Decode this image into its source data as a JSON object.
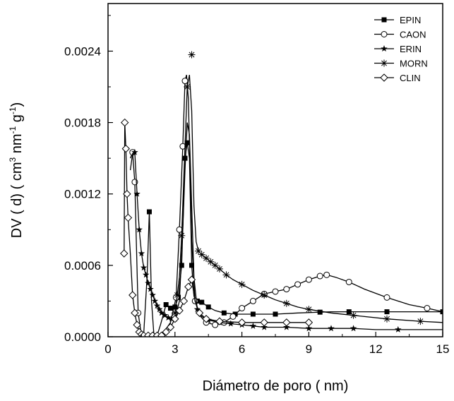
{
  "chart_data": {
    "type": "line",
    "xlabel": "Diámetro de poro  ( nm)",
    "ylabel": {
      "parts": [
        {
          "text": "DV ( d)  ( cm",
          "sup": false
        },
        {
          "text": "3",
          "sup": true
        },
        {
          "text": " nm",
          "sup": false
        },
        {
          "text": "-1",
          "sup": true
        },
        {
          "text": " g",
          "sup": false
        },
        {
          "text": "-1",
          "sup": true
        },
        {
          "text": ")",
          "sup": false
        }
      ]
    },
    "xlim": [
      0,
      15
    ],
    "ylim": [
      0,
      0.0028
    ],
    "x_ticks": [
      0,
      3,
      6,
      9,
      12,
      15
    ],
    "x_tick_labels": [
      "0",
      "3",
      "6",
      "9",
      "12",
      "15"
    ],
    "y_ticks": [
      0,
      0.0006,
      0.0012,
      0.0018,
      0.0024
    ],
    "y_tick_labels": [
      "0.0000",
      "0.0006",
      "0.0012",
      "0.0018",
      "0.0024"
    ],
    "grid": false,
    "legend_position": "top-right",
    "series": [
      {
        "name": "EPIN",
        "marker": "filled-square",
        "color": "#000000",
        "x": [
          1.45,
          1.6,
          1.75,
          1.85,
          1.95,
          2.05,
          2.2,
          2.35,
          2.6,
          2.8,
          2.9,
          3.0,
          3.15,
          3.3,
          3.45,
          3.55,
          3.65,
          3.75,
          3.85,
          4.0,
          4.2,
          4.5,
          4.8,
          5.2,
          5.7,
          6.5,
          7.5,
          8.5,
          10.0,
          12.0,
          15.0
        ],
        "y": [
          1e-05,
          3e-05,
          0.0005,
          0.00105,
          0.0003,
          3e-05,
          1e-05,
          0.0001,
          0.00027,
          0.00024,
          0.00025,
          0.00025,
          0.00033,
          0.0006,
          0.0015,
          0.00163,
          0.0015,
          0.0006,
          0.00034,
          0.0003,
          0.00029,
          0.00025,
          0.00022,
          0.0002,
          0.00019,
          0.00019,
          0.00019,
          0.0002,
          0.00021,
          0.00021,
          0.00021
        ],
        "marked_x": [
          1.85,
          2.6,
          2.8,
          3.0,
          3.15,
          3.3,
          3.45,
          3.55,
          3.75,
          4.0,
          4.2,
          4.5,
          5.2,
          5.7,
          6.5,
          7.5,
          9.5,
          10.8,
          12.5,
          15.0
        ]
      },
      {
        "name": "CAON",
        "marker": "open-circle",
        "color": "#000000",
        "x": [
          1.0,
          1.1,
          1.2,
          1.35,
          1.5,
          1.7,
          2.0,
          2.4,
          2.8,
          3.05,
          3.2,
          3.35,
          3.45,
          3.52,
          3.6,
          3.75,
          3.9,
          4.1,
          4.4,
          4.8,
          5.2,
          5.6,
          6.0,
          6.5,
          7.0,
          7.5,
          8.0,
          8.5,
          9.0,
          9.5,
          9.8,
          10.2,
          10.8,
          11.5,
          12.5,
          13.5,
          14.3,
          15.0
        ],
        "y": [
          0.0015,
          0.00155,
          0.0013,
          0.0002,
          1e-05,
          1e-05,
          1e-05,
          1e-05,
          0.00012,
          0.00033,
          0.0009,
          0.0016,
          0.00215,
          0.0022,
          0.002,
          0.0008,
          0.0003,
          0.00018,
          0.00012,
          0.0001,
          0.00012,
          0.00017,
          0.00024,
          0.0003,
          0.00036,
          0.00038,
          0.0004,
          0.00044,
          0.00048,
          0.00051,
          0.00052,
          0.0005,
          0.00046,
          0.0004,
          0.00033,
          0.00027,
          0.00024,
          0.00021
        ],
        "marked_x": [
          1.1,
          1.2,
          1.35,
          3.05,
          3.2,
          3.35,
          3.45,
          3.9,
          4.4,
          4.8,
          5.2,
          5.6,
          6.0,
          6.5,
          7.0,
          7.5,
          8.0,
          8.5,
          9.0,
          9.5,
          9.8,
          10.8,
          12.5,
          14.3
        ]
      },
      {
        "name": "ERIN",
        "marker": "star",
        "color": "#000000",
        "x": [
          1.0,
          1.1,
          1.2,
          1.3,
          1.4,
          1.5,
          1.6,
          1.7,
          1.8,
          1.9,
          2.0,
          2.1,
          2.2,
          2.3,
          2.4,
          2.55,
          2.7,
          2.85,
          3.0,
          3.2,
          3.35,
          3.45,
          3.55,
          3.65,
          3.75,
          3.85,
          4.0,
          4.2,
          4.5,
          5.0,
          5.5,
          6.0,
          6.5,
          7.0,
          8.0,
          9.0,
          10.0,
          11.0,
          12.0,
          13.0,
          15.0
        ],
        "y": [
          0.0014,
          0.00154,
          0.00155,
          0.0012,
          0.0009,
          0.0007,
          0.00058,
          0.00052,
          0.00045,
          0.0004,
          0.00035,
          0.0003,
          0.00026,
          0.00023,
          0.0002,
          0.00018,
          0.00016,
          0.00015,
          0.00015,
          0.0003,
          0.0009,
          0.0014,
          0.0018,
          0.0017,
          0.0011,
          0.0005,
          0.00023,
          0.00017,
          0.00014,
          0.00012,
          0.00011,
          0.0001,
          9e-05,
          8e-05,
          8e-05,
          7e-05,
          7e-05,
          7e-05,
          6e-05,
          6e-05,
          6e-05
        ],
        "marked_x": [
          1.2,
          1.3,
          1.4,
          1.5,
          1.6,
          1.7,
          1.8,
          1.9,
          2.0,
          2.1,
          2.2,
          2.3,
          2.4,
          2.55,
          2.7,
          2.85,
          3.0,
          4.0,
          4.5,
          5.0,
          5.5,
          6.0,
          6.5,
          7.0,
          8.0,
          9.0,
          10.0,
          11.0,
          13.0
        ]
      },
      {
        "name": "MORN",
        "marker": "asterisk",
        "color": "#000000",
        "x": [
          3.0,
          3.1,
          3.2,
          3.3,
          3.45,
          3.55,
          3.65,
          3.75,
          3.85,
          3.95,
          4.05,
          4.2,
          4.4,
          4.6,
          4.8,
          5.0,
          5.3,
          5.6,
          6.0,
          6.5,
          7.0,
          7.5,
          8.0,
          8.5,
          9.0,
          10.0,
          11.0,
          12.5,
          14.0,
          15.0
        ],
        "y": [
          0.0002,
          0.00035,
          0.0005,
          0.00085,
          0.0016,
          0.0021,
          0.0022,
          0.0019,
          0.0011,
          0.0008,
          0.00072,
          0.00069,
          0.00066,
          0.00063,
          0.0006,
          0.00057,
          0.00052,
          0.00048,
          0.00044,
          0.00039,
          0.00035,
          0.00031,
          0.00028,
          0.00025,
          0.00023,
          0.0002,
          0.00018,
          0.00015,
          0.00013,
          0.00012
        ],
        "marked_x": [
          3.0,
          3.1,
          3.3,
          3.55,
          4.05,
          4.2,
          4.4,
          4.6,
          4.8,
          5.0,
          5.3,
          6.0,
          7.0,
          8.0,
          9.0,
          11.0,
          12.5,
          14.0
        ],
        "outliers": [
          {
            "x": 3.75,
            "y": 0.00237
          }
        ]
      },
      {
        "name": "CLIN",
        "marker": "open-diamond",
        "color": "#000000",
        "x": [
          0.72,
          0.75,
          0.8,
          0.85,
          0.9,
          1.0,
          1.1,
          1.2,
          1.3,
          1.4,
          1.5,
          1.6,
          1.8,
          2.0,
          2.2,
          2.4,
          2.6,
          2.8,
          3.0,
          3.2,
          3.4,
          3.6,
          3.75,
          3.9,
          4.1,
          4.4,
          5.0,
          6.0,
          7.0,
          8.0,
          9.0
        ],
        "y": [
          0.0007,
          0.0018,
          0.00158,
          0.0012,
          0.001,
          0.0007,
          0.00035,
          0.0002,
          0.0001,
          4e-05,
          2e-05,
          1e-05,
          1e-05,
          1e-05,
          1e-05,
          1e-05,
          4e-05,
          8e-05,
          0.00015,
          0.00022,
          0.0003,
          0.00042,
          0.00048,
          0.0003,
          0.0002,
          0.00015,
          0.00013,
          0.00012,
          0.00012,
          0.00012,
          0.00012
        ],
        "marked_x": [
          0.72,
          0.75,
          0.8,
          0.85,
          0.9,
          1.1,
          1.2,
          1.3,
          1.4,
          1.5,
          1.6,
          1.8,
          2.0,
          2.2,
          2.4,
          2.6,
          2.8,
          3.0,
          3.2,
          3.4,
          3.6,
          3.75,
          4.1,
          4.4,
          5.0,
          6.0,
          7.0,
          8.0,
          9.0
        ]
      }
    ]
  }
}
